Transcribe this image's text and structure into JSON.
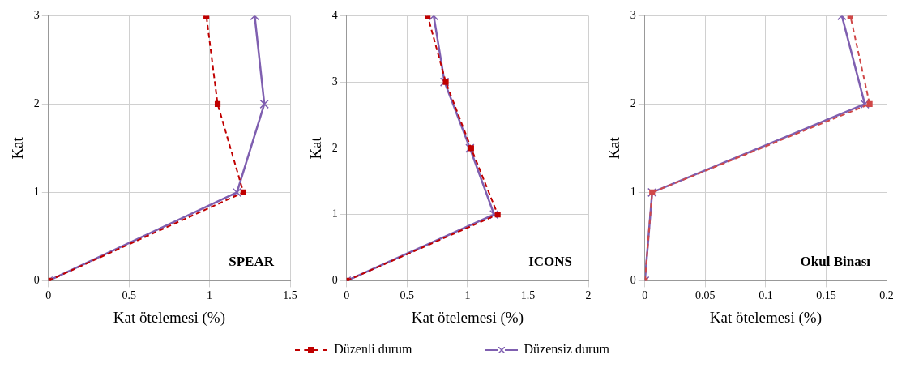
{
  "chart_data": [
    {
      "type": "line",
      "xlabel": "Kat ötelemesi (%)",
      "ylabel": "Kat",
      "annotations": [
        "SPEAR"
      ],
      "xlim": [
        0,
        1.5
      ],
      "xticks": [
        0,
        0.5,
        1,
        1.5
      ],
      "ylim": [
        0,
        3
      ],
      "yticks": [
        0,
        1,
        2,
        3
      ],
      "grid": true,
      "series": [
        {
          "color": "#c00000",
          "marker": "square",
          "line_style": "dashed",
          "x": [
            0,
            1.21,
            1.05,
            0.98
          ],
          "values": [
            0,
            1,
            2,
            3
          ]
        },
        {
          "color": "#7f5fb0",
          "marker": "cross",
          "line_style": "solid",
          "x": [
            0,
            1.17,
            1.34,
            1.28
          ],
          "values": [
            0,
            1,
            2,
            3
          ]
        }
      ]
    },
    {
      "type": "line",
      "xlabel": "Kat ötelemesi (%)",
      "ylabel": "Kat",
      "annotations": [
        "ICONS"
      ],
      "xlim": [
        0,
        2
      ],
      "xticks": [
        0,
        0.5,
        1,
        1.5,
        2
      ],
      "ylim": [
        0,
        4
      ],
      "yticks": [
        0,
        1,
        2,
        3,
        4
      ],
      "grid": true,
      "legend": "bottom",
      "series": [
        {
          "name": "Düzenli durum",
          "color": "#c00000",
          "marker": "square",
          "line_style": "dashed",
          "x": [
            0,
            1.25,
            1.03,
            0.82,
            0.67
          ],
          "values": [
            0,
            1,
            2,
            3,
            4
          ]
        },
        {
          "name": "Düzensiz durum",
          "color": "#7f5fb0",
          "marker": "cross",
          "line_style": "solid",
          "x": [
            0,
            1.22,
            1.02,
            0.81,
            0.72
          ],
          "values": [
            0,
            1,
            2,
            3,
            4
          ]
        }
      ]
    },
    {
      "type": "line",
      "xlabel": "Kat ötelemesi (%)",
      "ylabel": "Kat",
      "annotations": [
        "Okul Binası"
      ],
      "xlim": [
        0,
        0.2
      ],
      "xticks": [
        0,
        0.05,
        0.1,
        0.15,
        0.2
      ],
      "ylim": [
        0,
        3
      ],
      "yticks": [
        0,
        1,
        2,
        3
      ],
      "grid": true,
      "series": [
        {
          "color": "#d04848",
          "marker": "square",
          "line_style": "dashed",
          "x": [
            0,
            0.006,
            0.186,
            0.17
          ],
          "values": [
            0,
            1,
            2,
            3
          ]
        },
        {
          "color": "#7f5fb0",
          "marker": "cross",
          "line_style": "solid",
          "x": [
            0,
            0.006,
            0.182,
            0.163
          ],
          "values": [
            0,
            1,
            2,
            3
          ]
        }
      ]
    }
  ]
}
